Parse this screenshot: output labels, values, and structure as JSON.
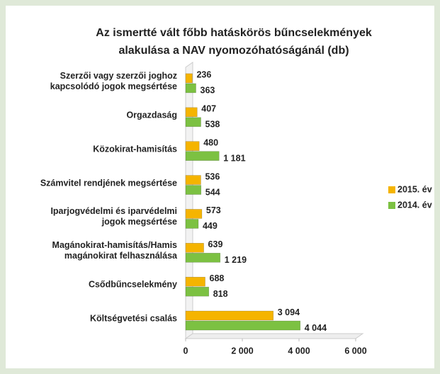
{
  "chart_data": {
    "type": "barh",
    "title": [
      "Az ismertté vált főbb hatáskörös bűncselekmények",
      "alakulása a NAV nyomozóhatóságánál (db)"
    ],
    "categories": [
      "Szerzői vagy szerzői joghoz kapcsolódó jogok megsértése",
      "Orgazdaság",
      "Közokirat-hamisítás",
      "Számvitel rendjének megsértése",
      "Iparjogvédelmi és iparvédelmi jogok megsértése",
      "Magánokirat-hamisítás/Hamis magánokirat felhasználása",
      "Csődbűncselekmény",
      "Költségvetési csalás"
    ],
    "series": [
      {
        "name": "2015. év",
        "color": "#f5b400",
        "values": [
          236,
          407,
          480,
          536,
          573,
          639,
          688,
          3094
        ],
        "value_labels": [
          "236",
          "407",
          "480",
          "536",
          "573",
          "639",
          "688",
          "3 094"
        ]
      },
      {
        "name": "2014. év",
        "color": "#7cc142",
        "values": [
          363,
          538,
          1181,
          544,
          449,
          1219,
          818,
          4044
        ],
        "value_labels": [
          "363",
          "538",
          "1 181",
          "544",
          "449",
          "1 219",
          "818",
          "4 044"
        ]
      }
    ],
    "xlim": [
      0,
      6000
    ],
    "xticks": [
      0,
      {
        "value": 2000,
        "label": "2 000"
      },
      {
        "value": 4000,
        "label": "4 000"
      },
      {
        "value": 6000,
        "label": "6 000"
      }
    ],
    "legend": "right"
  }
}
